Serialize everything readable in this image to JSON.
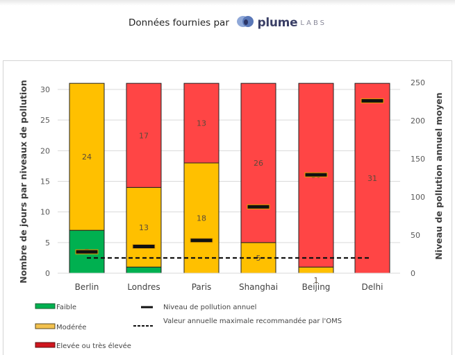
{
  "header": {
    "credit_text": "Données fournies par",
    "brand_name": "plume",
    "brand_suffix": "LABS"
  },
  "colors": {
    "faible": "#00b050",
    "moderee": "#ffc000",
    "elevee": "#ff4545",
    "legend_elevee": "#d0161e",
    "grid": "#d9d9d9",
    "axis_text": "#595959"
  },
  "chart_data": {
    "type": "bar",
    "stacked": true,
    "title": "",
    "categories": [
      "Berlin",
      "Londres",
      "Paris",
      "Shanghai",
      "Beijing",
      "Delhi"
    ],
    "series": [
      {
        "name": "Faible",
        "values": [
          7,
          1,
          0,
          0,
          0,
          0
        ]
      },
      {
        "name": "Modérée",
        "values": [
          24,
          13,
          18,
          5,
          1,
          0
        ]
      },
      {
        "name": "Elevée ou très élevée",
        "values": [
          0,
          17,
          13,
          26,
          30,
          31
        ]
      }
    ],
    "segment_labels": [
      {
        "city": "Berlin",
        "labels": [
          "7",
          "24",
          ""
        ]
      },
      {
        "city": "Londres",
        "labels": [
          "",
          "13",
          "17"
        ]
      },
      {
        "city": "Paris",
        "labels": [
          "",
          "18",
          "13"
        ]
      },
      {
        "city": "Shanghai",
        "labels": [
          "",
          "5",
          "26"
        ]
      },
      {
        "city": "Beijing",
        "labels": [
          "",
          "1",
          "30"
        ]
      },
      {
        "city": "Delhi",
        "labels": [
          "",
          "",
          "31"
        ]
      }
    ],
    "line_series": [
      {
        "name": "Niveau de pollution annuel",
        "axis": "right",
        "style": "marker-dash",
        "values": [
          28,
          35,
          43,
          87,
          129,
          226
        ]
      },
      {
        "name": "Valeur annuelle maximale recommandée par l'OMS",
        "axis": "right",
        "style": "dashed",
        "values": [
          20,
          20,
          20,
          20,
          20,
          20
        ]
      }
    ],
    "ylabel": "Nombre de jours par niveaux de pollution",
    "ylim": [
      0,
      30
    ],
    "yticks": [
      0,
      5,
      10,
      15,
      20,
      25,
      30
    ],
    "y2label": "Niveau de pollution annuel moyen",
    "y2lim": [
      0,
      250
    ],
    "y2ticks": [
      0,
      50,
      100,
      150,
      200,
      250
    ],
    "grid": true,
    "legend_position": "bottom",
    "legend": [
      {
        "label": "Faible",
        "type": "swatch"
      },
      {
        "label": "Modérée",
        "type": "swatch"
      },
      {
        "label": "Elevée ou très élevée",
        "type": "swatch"
      },
      {
        "label": "Niveau de pollution annuel",
        "type": "solid-line"
      },
      {
        "label": "Valeur annuelle maximale recommandée par l'OMS",
        "type": "dashed-line"
      }
    ]
  }
}
